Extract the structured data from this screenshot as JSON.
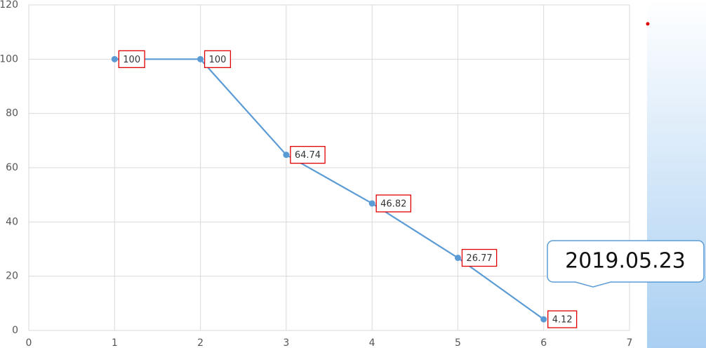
{
  "chart_data": {
    "type": "line",
    "x": [
      1,
      2,
      3,
      4,
      5,
      6
    ],
    "series": [
      {
        "color": "#5b9bd5",
        "values": [
          100,
          100,
          64.74,
          46.82,
          26.77,
          4.12
        ]
      }
    ],
    "xlim": [
      0,
      7
    ],
    "xticks": [
      0,
      1,
      2,
      3,
      4,
      5,
      6,
      7
    ],
    "ylim": [
      0,
      120
    ],
    "yticks": [
      0,
      20,
      40,
      60,
      80,
      100,
      120
    ],
    "grid": true,
    "annotation": "2019.05.23"
  }
}
